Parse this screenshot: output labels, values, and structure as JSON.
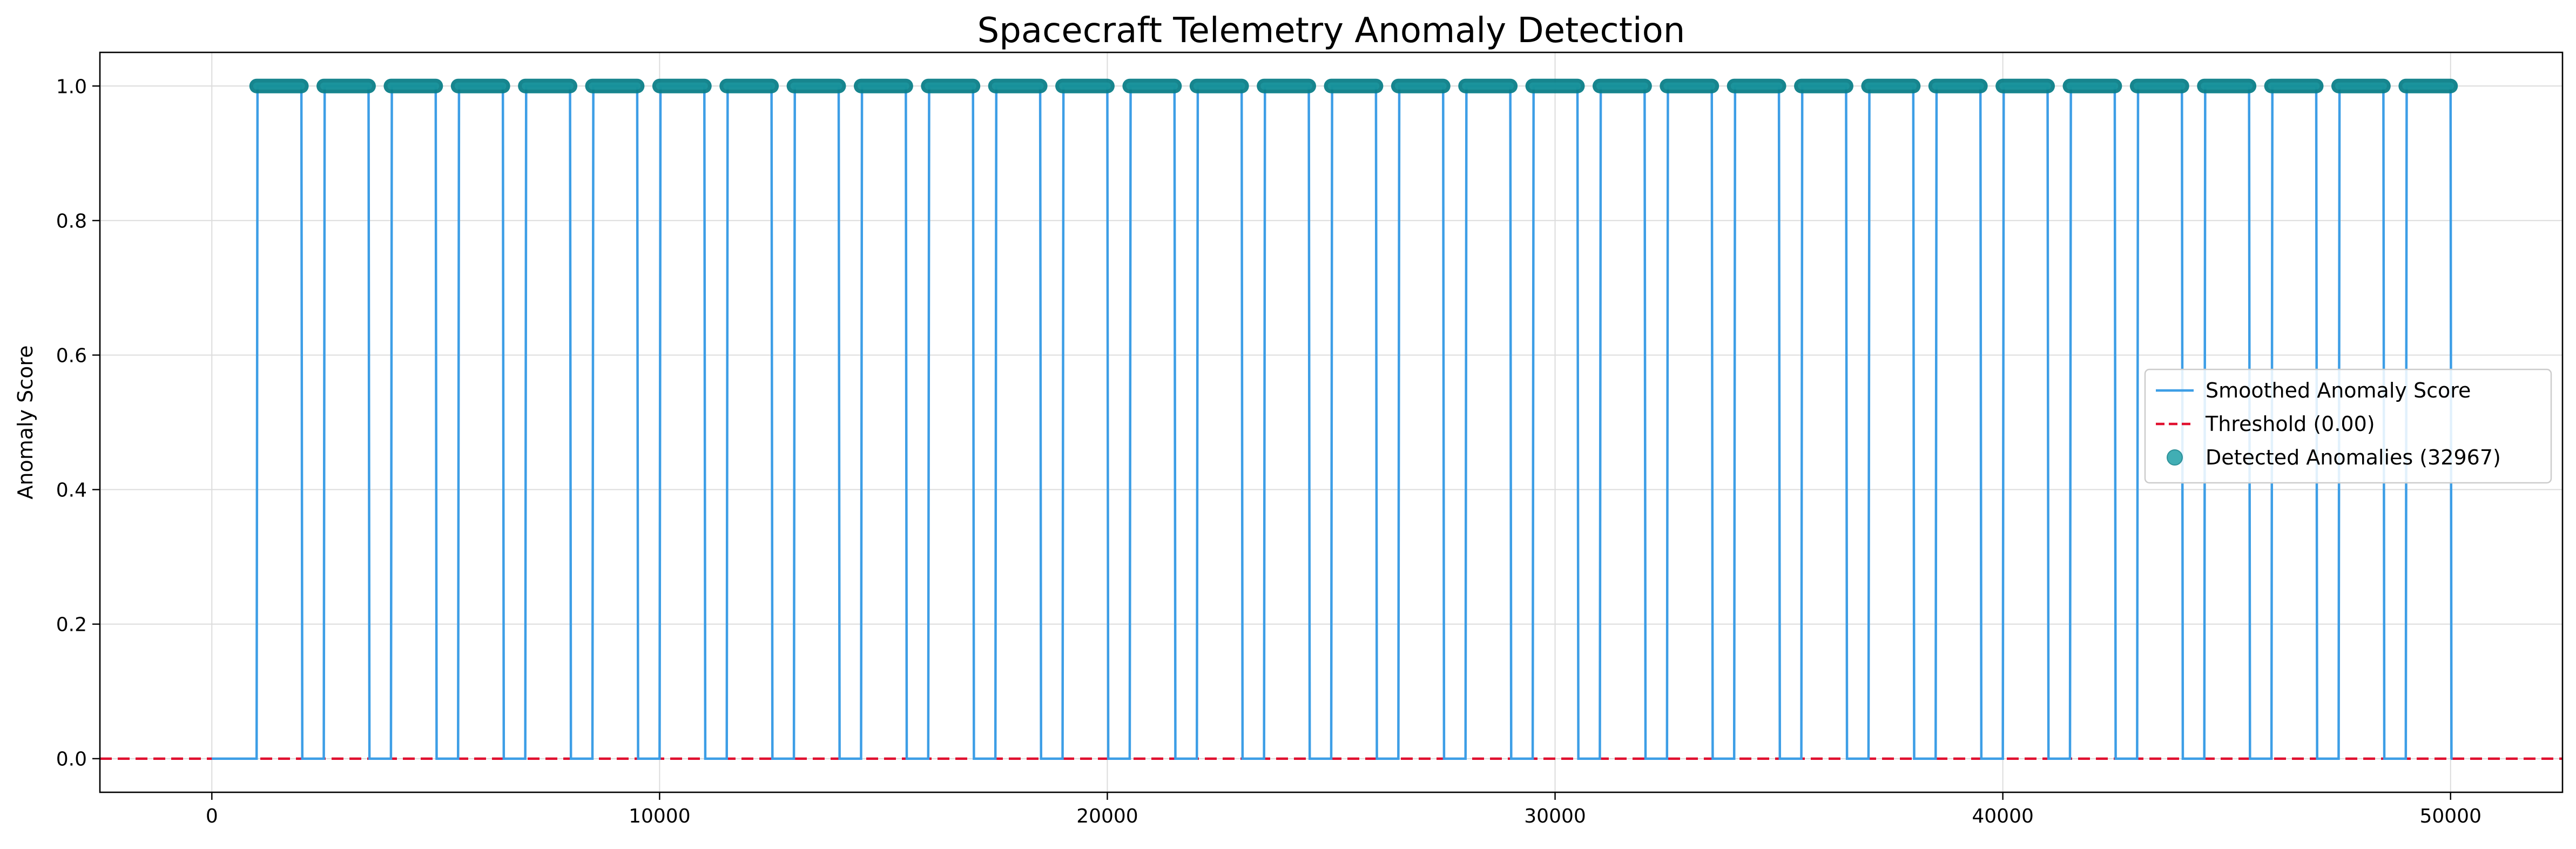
{
  "chart_data": {
    "type": "line",
    "title": "Spacecraft Telemetry Anomaly Detection",
    "xlabel": "",
    "ylabel": "Anomaly Score",
    "xlim": [
      -2500,
      52500
    ],
    "ylim": [
      -0.05,
      1.05
    ],
    "x_ticks": [
      0,
      10000,
      20000,
      30000,
      40000,
      50000
    ],
    "x_tick_labels": [
      "0",
      "10000",
      "20000",
      "30000",
      "40000",
      "50000"
    ],
    "y_ticks": [
      0.0,
      0.2,
      0.4,
      0.6,
      0.8,
      1.0
    ],
    "y_tick_labels": [
      "0.0",
      "0.2",
      "0.4",
      "0.6",
      "0.8",
      "1.0"
    ],
    "grid": true,
    "legend_position": "center-right",
    "threshold": 0.0,
    "high_score": 1.0,
    "low_score": 0.0,
    "anomaly_segments": [
      [
        1000,
        2000
      ],
      [
        2500,
        3500
      ],
      [
        4000,
        5000
      ],
      [
        5500,
        6500
      ],
      [
        7000,
        8000
      ],
      [
        8500,
        9500
      ],
      [
        10000,
        11000
      ],
      [
        11500,
        12500
      ],
      [
        13000,
        14000
      ],
      [
        14500,
        15500
      ],
      [
        16000,
        17000
      ],
      [
        17500,
        18500
      ],
      [
        19000,
        20000
      ],
      [
        20500,
        21500
      ],
      [
        22000,
        23000
      ],
      [
        23500,
        24500
      ],
      [
        25000,
        26000
      ],
      [
        26500,
        27500
      ],
      [
        28000,
        29000
      ],
      [
        29500,
        30500
      ],
      [
        31000,
        32000
      ],
      [
        32500,
        33500
      ],
      [
        34000,
        35000
      ],
      [
        35500,
        36500
      ],
      [
        37000,
        38000
      ],
      [
        38500,
        39500
      ],
      [
        40000,
        41000
      ],
      [
        41500,
        42500
      ],
      [
        43000,
        44000
      ],
      [
        44500,
        45500
      ],
      [
        46000,
        47000
      ],
      [
        47500,
        48500
      ],
      [
        49000,
        50000
      ]
    ],
    "x_range": [
      0,
      50000
    ],
    "series": [
      {
        "name": "Smoothed Anomaly Score",
        "kind": "line",
        "color": "#3d9ee6"
      },
      {
        "name": "Threshold (0.00)",
        "kind": "dashed-line",
        "color": "#e0102f"
      },
      {
        "name": "Detected Anomalies (32967)",
        "kind": "scatter",
        "color": "#20a0a8",
        "edge_color": "#0b7f88"
      }
    ]
  }
}
